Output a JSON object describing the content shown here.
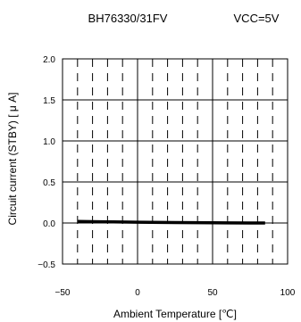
{
  "chart_data": {
    "type": "line",
    "title": {
      "part_number": "BH76330/31FV",
      "condition": "VCC=5V"
    },
    "xlabel": "Ambient Temperature [℃]",
    "ylabel": "Circuit current (STBY) [ μ A]",
    "xlim": [
      -50,
      100
    ],
    "ylim": [
      -0.5,
      2.0
    ],
    "xticks": [
      -50,
      0,
      50,
      100
    ],
    "xtick_labels": [
      "−50",
      "0",
      "50",
      "100"
    ],
    "yticks": [
      -0.5,
      0.0,
      0.5,
      1.0,
      1.5,
      2.0
    ],
    "ytick_labels": [
      "−0.5",
      "0.0",
      "0.5",
      "1.0",
      "1.5",
      "2.0"
    ],
    "grid": true,
    "series": [
      {
        "x": [
          -40,
          -25,
          0,
          25,
          50,
          75,
          85
        ],
        "y": [
          0.02,
          0.015,
          0.01,
          0.005,
          0.003,
          0.0,
          0.0
        ]
      }
    ]
  }
}
